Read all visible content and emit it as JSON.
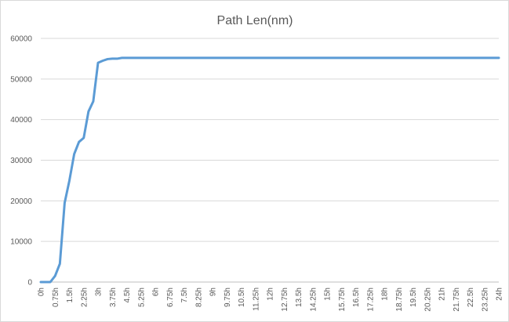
{
  "chart_data": {
    "type": "line",
    "title": "Path Len(nm)",
    "xlabel": "",
    "ylabel": "",
    "ylim": [
      0,
      60000
    ],
    "yticks": [
      "0",
      "10000",
      "20000",
      "30000",
      "40000",
      "50000",
      "60000"
    ],
    "categories": [
      "0h",
      "0.25h",
      "0.5h",
      "0.75h",
      "1h",
      "1.25h",
      "1.5h",
      "1.75h",
      "2h",
      "2.25h",
      "2.5h",
      "2.75h",
      "3h",
      "3.25h",
      "3.5h",
      "3.75h",
      "4h",
      "4.25h",
      "4.5h",
      "4.75h",
      "5h",
      "5.25h",
      "5.5h",
      "5.75h",
      "6h",
      "6.25h",
      "6.5h",
      "6.75h",
      "7h",
      "7.25h",
      "7.5h",
      "7.75h",
      "8h",
      "8.25h",
      "8.5h",
      "8.75h",
      "9h",
      "9.25h",
      "9.5h",
      "9.75h",
      "10h",
      "10.25h",
      "10.5h",
      "10.75h",
      "11h",
      "11.25h",
      "11.5h",
      "11.75h",
      "12h",
      "12.25h",
      "12.5h",
      "12.75h",
      "13h",
      "13.25h",
      "13.5h",
      "13.75h",
      "14h",
      "14.25h",
      "14.5h",
      "14.75h",
      "15h",
      "15.25h",
      "15.5h",
      "15.75h",
      "16h",
      "16.25h",
      "16.5h",
      "16.75h",
      "17h",
      "17.25h",
      "17.5h",
      "17.75h",
      "18h",
      "18.25h",
      "18.5h",
      "18.75h",
      "19h",
      "19.25h",
      "19.5h",
      "19.75h",
      "20h",
      "20.25h",
      "20.5h",
      "20.75h",
      "21h",
      "21.25h",
      "21.5h",
      "21.75h",
      "22h",
      "22.25h",
      "22.5h",
      "22.75h",
      "23h",
      "23.25h",
      "23.5h",
      "23.75h",
      "24h"
    ],
    "visible_tick_labels": [
      "0h",
      "0.75h",
      "1.5h",
      "2.25h",
      "3h",
      "3.75h",
      "4.5h",
      "5.25h",
      "6h",
      "6.75h",
      "7.5h",
      "8.25h",
      "9h",
      "9.75h",
      "10.5h",
      "11.25h",
      "12h",
      "12.75h",
      "13.5h",
      "14.25h",
      "15h",
      "15.75h",
      "16.5h",
      "17.25h",
      "18h",
      "18.75h",
      "19.5h",
      "20.25h",
      "21h",
      "21.75h",
      "22.5h",
      "23.25h",
      "24h"
    ],
    "series": [
      {
        "values": [
          0,
          0,
          0,
          1500,
          4500,
          19500,
          25000,
          31500,
          34500,
          35500,
          42000,
          44500,
          54000,
          54500,
          54900,
          55000,
          55000,
          55200,
          55200,
          55200,
          55200,
          55200,
          55200,
          55200,
          55200,
          55200,
          55200,
          55200,
          55200,
          55200,
          55200,
          55200,
          55200,
          55200,
          55200,
          55200,
          55200,
          55200,
          55200,
          55200,
          55200,
          55200,
          55200,
          55200,
          55200,
          55200,
          55200,
          55200,
          55200,
          55200,
          55200,
          55200,
          55200,
          55200,
          55200,
          55200,
          55200,
          55200,
          55200,
          55200,
          55200,
          55200,
          55200,
          55200,
          55200,
          55200,
          55200,
          55200,
          55200,
          55200,
          55200,
          55200,
          55200,
          55200,
          55200,
          55200,
          55200,
          55200,
          55200,
          55200,
          55200,
          55200,
          55200,
          55200,
          55200,
          55200,
          55200,
          55200,
          55200,
          55200,
          55200,
          55200,
          55200,
          55200,
          55200,
          55200,
          55200
        ],
        "color": "#5b9bd5"
      }
    ],
    "grid": true,
    "legend": "none",
    "colors": {
      "line": "#5b9bd5",
      "grid": "#d9d9d9",
      "axis": "#bfbfbf",
      "text": "#595959"
    }
  }
}
